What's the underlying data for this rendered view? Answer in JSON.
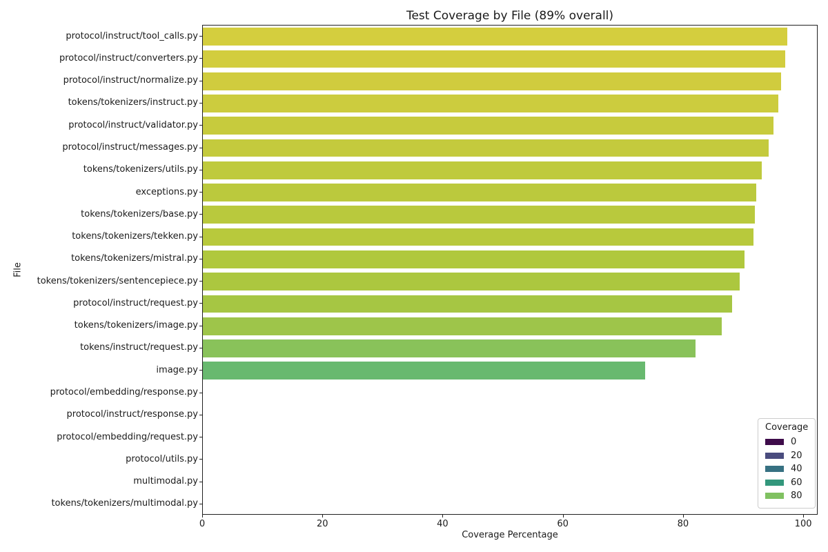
{
  "chart_data": {
    "type": "bar",
    "orientation": "horizontal",
    "title": "Test Coverage by File (89% overall)",
    "overall_coverage_percent": 89,
    "xlabel": "Coverage Percentage",
    "ylabel": "File",
    "xlim": [
      0,
      102.4
    ],
    "x_ticks": [
      0,
      20,
      40,
      60,
      80,
      100
    ],
    "grid": false,
    "palette": "viridis (desaturated)",
    "legend": {
      "title": "Coverage",
      "position": "lower right",
      "entries": [
        {
          "label": "0",
          "color": "#3e0b4a"
        },
        {
          "label": "20",
          "color": "#4a4c7e"
        },
        {
          "label": "40",
          "color": "#377182"
        },
        {
          "label": "60",
          "color": "#33977c"
        },
        {
          "label": "80",
          "color": "#80c161"
        }
      ]
    },
    "categories": [
      "protocol/instruct/tool_calls.py",
      "protocol/instruct/converters.py",
      "protocol/instruct/normalize.py",
      "tokens/tokenizers/instruct.py",
      "protocol/instruct/validator.py",
      "protocol/instruct/messages.py",
      "tokens/tokenizers/utils.py",
      "exceptions.py",
      "tokens/tokenizers/base.py",
      "tokens/tokenizers/tekken.py",
      "tokens/tokenizers/mistral.py",
      "tokens/tokenizers/sentencepiece.py",
      "protocol/instruct/request.py",
      "tokens/tokenizers/image.py",
      "tokens/instruct/request.py",
      "image.py",
      "protocol/embedding/response.py",
      "protocol/instruct/response.py",
      "protocol/embedding/request.py",
      "protocol/utils.py",
      "multimodal.py",
      "tokens/tokenizers/multimodal.py"
    ],
    "values": [
      97.5,
      97.1,
      96.4,
      96.0,
      95.1,
      94.4,
      93.2,
      92.3,
      92.0,
      91.8,
      90.3,
      89.5,
      88.3,
      86.5,
      82.1,
      73.8,
      0,
      0,
      0,
      0,
      0,
      0
    ],
    "bar_colors": [
      "#d4ce3e",
      "#d2cd3e",
      "#d0cc3e",
      "#cccc3e",
      "#c7cb3d",
      "#c4ca3d",
      "#bfca3d",
      "#bbc93d",
      "#b9c93d",
      "#b8c93c",
      "#b0c83d",
      "#acc73f",
      "#a6c643",
      "#9ec54a",
      "#89c25a",
      "#68b96f",
      "#3e0b4a",
      "#3e0b4a",
      "#3e0b4a",
      "#3e0b4a",
      "#3e0b4a",
      "#3e0b4a"
    ]
  }
}
